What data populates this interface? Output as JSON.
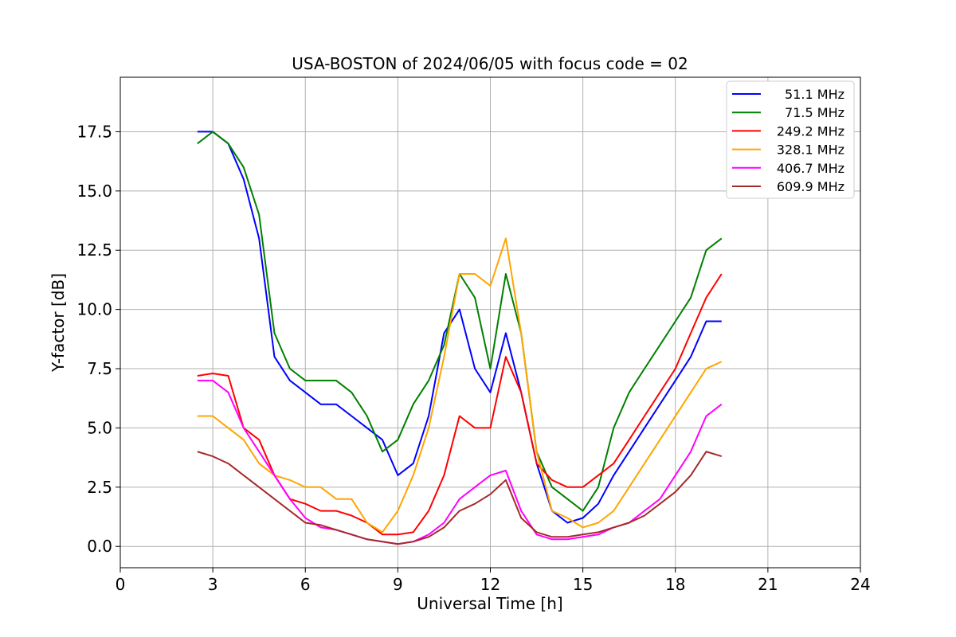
{
  "chart_data": {
    "type": "line",
    "title": "USA-BOSTON of 2024/06/05 with focus code = 02",
    "xlabel": "Universal Time [h]",
    "ylabel": "Y-factor [dB]",
    "xlim": [
      0,
      24
    ],
    "ylim": [
      -0.9,
      19.8
    ],
    "xticks": [
      0,
      3,
      6,
      9,
      12,
      15,
      18,
      21,
      24
    ],
    "xtick_labels": [
      "0",
      "3",
      "6",
      "9",
      "12",
      "15",
      "18",
      "21",
      "24"
    ],
    "yticks": [
      0,
      2.5,
      5,
      7.5,
      10,
      12.5,
      15,
      17.5
    ],
    "ytick_labels": [
      "0.0",
      "2.5",
      "5.0",
      "7.5",
      "10.0",
      "12.5",
      "15.0",
      "17.5"
    ],
    "grid": true,
    "legend_position": "top-right",
    "series": [
      {
        "name": "51.1 MHz",
        "color": "#0000ff",
        "x": [
          2.5,
          3.0,
          3.5,
          4.0,
          4.5,
          5.0,
          5.5,
          6.0,
          6.5,
          7.0,
          7.5,
          8.0,
          8.5,
          9.0,
          9.5,
          10.0,
          10.5,
          11.0,
          11.5,
          12.0,
          12.5,
          13.0,
          13.5,
          14.0,
          14.5,
          15.0,
          15.5,
          16.0,
          16.5,
          17.0,
          17.5,
          18.0,
          18.5,
          19.0,
          19.5
        ],
        "y": [
          17.5,
          17.5,
          17.0,
          15.5,
          13.0,
          8.0,
          7.0,
          6.5,
          6.0,
          6.0,
          5.5,
          5.0,
          4.5,
          3.0,
          3.5,
          5.5,
          9.0,
          10.0,
          7.5,
          6.5,
          9.0,
          6.5,
          3.5,
          1.5,
          1.0,
          1.2,
          1.8,
          3.0,
          4.0,
          5.0,
          6.0,
          7.0,
          8.0,
          9.5,
          9.5
        ]
      },
      {
        "name": "71.5 MHz",
        "color": "#008000",
        "x": [
          2.5,
          3.0,
          3.5,
          4.0,
          4.5,
          5.0,
          5.5,
          6.0,
          6.5,
          7.0,
          7.5,
          8.0,
          8.5,
          9.0,
          9.5,
          10.0,
          10.5,
          11.0,
          11.5,
          12.0,
          12.5,
          13.0,
          13.5,
          14.0,
          14.5,
          15.0,
          15.5,
          16.0,
          16.5,
          17.0,
          17.5,
          18.0,
          18.5,
          19.0,
          19.5
        ],
        "y": [
          17.0,
          17.5,
          17.0,
          16.0,
          14.0,
          9.0,
          7.5,
          7.0,
          7.0,
          7.0,
          6.5,
          5.5,
          4.0,
          4.5,
          6.0,
          7.0,
          8.5,
          11.5,
          10.5,
          7.5,
          11.5,
          9.0,
          4.0,
          2.5,
          2.0,
          1.5,
          2.5,
          5.0,
          6.5,
          7.5,
          8.5,
          9.5,
          10.5,
          12.5,
          13.0
        ]
      },
      {
        "name": "249.2 MHz",
        "color": "#ff0000",
        "x": [
          2.5,
          3.0,
          3.5,
          4.0,
          4.5,
          5.0,
          5.5,
          6.0,
          6.5,
          7.0,
          7.5,
          8.0,
          8.5,
          9.0,
          9.5,
          10.0,
          10.5,
          11.0,
          11.5,
          12.0,
          12.5,
          13.0,
          13.5,
          14.0,
          14.5,
          15.0,
          15.5,
          16.0,
          16.5,
          17.0,
          17.5,
          18.0,
          18.5,
          19.0,
          19.5
        ],
        "y": [
          7.2,
          7.3,
          7.2,
          5.0,
          4.5,
          3.0,
          2.0,
          1.8,
          1.5,
          1.5,
          1.3,
          1.0,
          0.5,
          0.5,
          0.6,
          1.5,
          3.0,
          5.5,
          5.0,
          5.0,
          8.0,
          6.5,
          3.5,
          2.8,
          2.5,
          2.5,
          3.0,
          3.5,
          4.5,
          5.5,
          6.5,
          7.5,
          9.0,
          10.5,
          11.5
        ]
      },
      {
        "name": "328.1 MHz",
        "color": "#ffa500",
        "x": [
          2.5,
          3.0,
          3.5,
          4.0,
          4.5,
          5.0,
          5.5,
          6.0,
          6.5,
          7.0,
          7.5,
          8.0,
          8.5,
          9.0,
          9.5,
          10.0,
          10.5,
          11.0,
          11.5,
          12.0,
          12.5,
          13.0,
          13.5,
          14.0,
          14.5,
          15.0,
          15.5,
          16.0,
          16.5,
          17.0,
          17.5,
          18.0,
          18.5,
          19.0,
          19.5
        ],
        "y": [
          5.5,
          5.5,
          5.0,
          4.5,
          3.5,
          3.0,
          2.8,
          2.5,
          2.5,
          2.0,
          2.0,
          1.0,
          0.6,
          1.5,
          3.0,
          5.0,
          8.0,
          11.5,
          11.5,
          11.0,
          13.0,
          9.0,
          4.0,
          1.5,
          1.2,
          0.8,
          1.0,
          1.5,
          2.5,
          3.5,
          4.5,
          5.5,
          6.5,
          7.5,
          7.8
        ]
      },
      {
        "name": "406.7 MHz",
        "color": "#ff00ff",
        "x": [
          2.5,
          3.0,
          3.5,
          4.0,
          4.5,
          5.0,
          5.5,
          6.0,
          6.5,
          7.0,
          7.5,
          8.0,
          8.5,
          9.0,
          9.5,
          10.0,
          10.5,
          11.0,
          11.5,
          12.0,
          12.5,
          13.0,
          13.5,
          14.0,
          14.5,
          15.0,
          15.5,
          16.0,
          16.5,
          17.0,
          17.5,
          18.0,
          18.5,
          19.0,
          19.5
        ],
        "y": [
          7.0,
          7.0,
          6.5,
          5.0,
          4.0,
          3.0,
          2.0,
          1.2,
          0.8,
          0.7,
          0.5,
          0.3,
          0.2,
          0.1,
          0.2,
          0.5,
          1.0,
          2.0,
          2.5,
          3.0,
          3.2,
          1.5,
          0.5,
          0.3,
          0.3,
          0.4,
          0.5,
          0.8,
          1.0,
          1.5,
          2.0,
          3.0,
          4.0,
          5.5,
          6.0
        ]
      },
      {
        "name": "609.9 MHz",
        "color": "#a52a2a",
        "x": [
          2.5,
          3.0,
          3.5,
          4.0,
          4.5,
          5.0,
          5.5,
          6.0,
          6.5,
          7.0,
          7.5,
          8.0,
          8.5,
          9.0,
          9.5,
          10.0,
          10.5,
          11.0,
          11.5,
          12.0,
          12.5,
          13.0,
          13.5,
          14.0,
          14.5,
          15.0,
          15.5,
          16.0,
          16.5,
          17.0,
          17.5,
          18.0,
          18.5,
          19.0,
          19.5
        ],
        "y": [
          4.0,
          3.8,
          3.5,
          3.0,
          2.5,
          2.0,
          1.5,
          1.0,
          0.9,
          0.7,
          0.5,
          0.3,
          0.2,
          0.1,
          0.2,
          0.4,
          0.8,
          1.5,
          1.8,
          2.2,
          2.8,
          1.2,
          0.6,
          0.4,
          0.4,
          0.5,
          0.6,
          0.8,
          1.0,
          1.3,
          1.8,
          2.3,
          3.0,
          4.0,
          3.8
        ]
      }
    ]
  }
}
